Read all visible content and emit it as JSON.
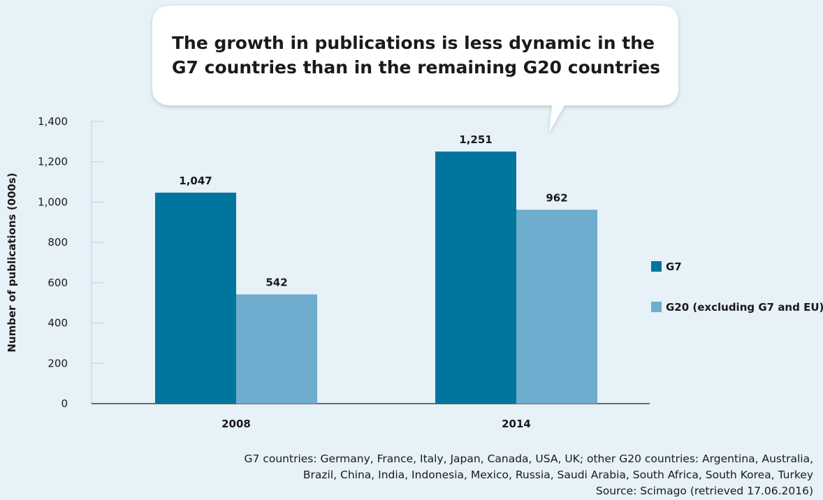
{
  "callout": "The growth in publications is less dynamic in the G7 countries than in the remaining G20 countries",
  "notes": {
    "line1": "G7 countries: Germany, France, Italy, Japan, Canada, USA, UK; other G20 countries: Argentina, Australia,",
    "line2": "Brazil, China, India, Indonesia, Mexico, Russia, Saudi Arabia, South Africa, South Korea, Turkey",
    "source": "Source: Scimago (retrieved 17.06.2016)"
  },
  "chart_data": {
    "type": "bar",
    "categories": [
      "2008",
      "2014"
    ],
    "series": [
      {
        "name": "G7",
        "values": [
          1047,
          1251
        ],
        "color": "#00759e"
      },
      {
        "name": "G20 (excluding G7 and EU)",
        "values": [
          542,
          962
        ],
        "color": "#6eadcd"
      }
    ],
    "data_labels": [
      [
        "1,047",
        "1,251"
      ],
      [
        "542",
        "962"
      ]
    ],
    "ylabel": "Number of publications (000s)",
    "ylim": [
      0,
      1400
    ],
    "yticks": [
      0,
      200,
      400,
      600,
      800,
      1000,
      1200,
      1400
    ],
    "ytick_labels": [
      "0",
      "200",
      "400",
      "600",
      "800",
      "1,000",
      "1,200",
      "1,400"
    ],
    "grid": false,
    "legend_position": "right"
  }
}
